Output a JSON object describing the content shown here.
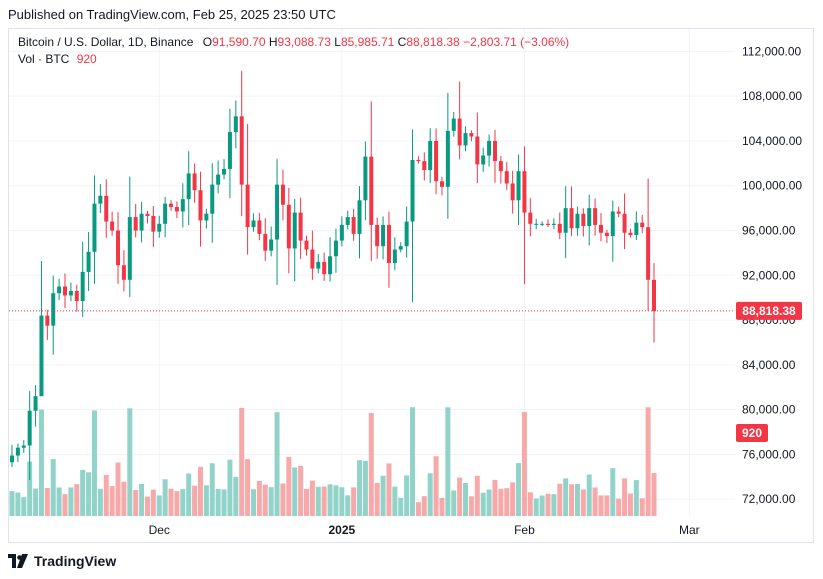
{
  "published": "Published on TradingView.com, Feb 25, 2025 23:50 UTC",
  "legend": {
    "symbol": "Bitcoin / U.S. Dollar, 1D, Binance",
    "o_label": "O",
    "o": "91,590.70",
    "h_label": "H",
    "h": "93,088.73",
    "l_label": "L",
    "l": "85,985.71",
    "c_label": "C",
    "c": "88,818.38",
    "change": "−2,803.71 (−3.06%)"
  },
  "vol_legend": {
    "label": "Vol · BTC",
    "value": "920"
  },
  "price_tag": "88,818.38",
  "vol_tag": "920",
  "footer": {
    "brand": "TradingView"
  },
  "colors": {
    "up": "#089981",
    "down": "#f23645",
    "vol_up": "#91d2c9",
    "vol_down": "#f7a9a9",
    "grid": "#f0f3fa"
  },
  "chart_data": {
    "type": "candlestick",
    "title": "Bitcoin / U.S. Dollar, 1D, Binance",
    "y_ticks": [
      72000,
      76000,
      80000,
      84000,
      88000,
      92000,
      96000,
      100000,
      104000,
      108000,
      112000
    ],
    "y_tick_labels": [
      "72,000.00",
      "76,000.00",
      "80,000.00",
      "84,000.00",
      "88,000.00",
      "92,000.00",
      "96,000.00",
      "100,000.00",
      "104,000.00",
      "108,000.00",
      "112,000.00"
    ],
    "x_tick_labels": [
      {
        "label": "Dec",
        "index": 25,
        "bold": false
      },
      {
        "label": "2025",
        "index": 56,
        "bold": true
      },
      {
        "label": "Feb",
        "index": 87,
        "bold": false
      },
      {
        "label": "Mar",
        "index": 115,
        "bold": false
      }
    ],
    "ylim": [
      70500,
      114000
    ],
    "last_close": 88818.38,
    "close": [
      75900,
      76600,
      76800,
      79900,
      81200,
      88400,
      87500,
      90400,
      91000,
      90200,
      90600,
      89700,
      92300,
      94100,
      98400,
      99100,
      96800,
      96000,
      92900,
      91600,
      97200,
      96000,
      97500,
      97300,
      95900,
      96600,
      98400,
      98100,
      97700,
      98800,
      101100,
      99600,
      96900,
      97500,
      100100,
      101000,
      101500,
      104800,
      106200,
      100100,
      96300,
      96900,
      95700,
      94200,
      95200,
      100100,
      98300,
      94400,
      97600,
      95100,
      94300,
      92600,
      93200,
      92100,
      93700,
      95100,
      96500,
      97200,
      95700,
      98700,
      102600,
      96500,
      94600,
      96500,
      93100,
      94300,
      94600,
      96800,
      102300,
      102200,
      101400,
      104000,
      100400,
      99900,
      104900,
      106000,
      103600,
      104700,
      104400,
      101900,
      102700,
      104000,
      102200,
      101300,
      100200,
      98700,
      101300,
      97600,
      96600,
      96600,
      96600,
      96500,
      96600,
      95800,
      98000,
      96200,
      97500,
      96400,
      98000,
      96500,
      95800,
      95500,
      97700,
      97500,
      95800,
      95600,
      96700,
      96300,
      91600,
      88800
    ],
    "volume_scale": [
      0,
      5000
    ],
    "volume_note": "Relative BTC volume per candle, estimated from bar heights (axis not labeled)."
  }
}
